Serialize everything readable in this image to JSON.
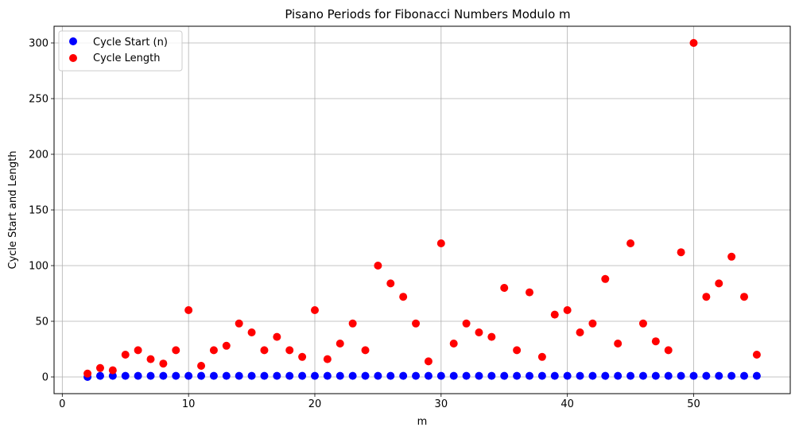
{
  "chart_data": {
    "type": "scatter",
    "title": "Pisano Periods for Fibonacci Numbers Modulo m",
    "xlabel": "m",
    "ylabel": "Cycle Start and Length",
    "xlim": [
      -0.65,
      57.65
    ],
    "ylim": [
      -15,
      315
    ],
    "xticks": [
      0,
      10,
      20,
      30,
      40,
      50
    ],
    "yticks": [
      0,
      50,
      100,
      150,
      200,
      250,
      300
    ],
    "grid": true,
    "legend_position": "top-left",
    "x": [
      2,
      3,
      4,
      5,
      6,
      7,
      8,
      9,
      10,
      11,
      12,
      13,
      14,
      15,
      16,
      17,
      18,
      19,
      20,
      21,
      22,
      23,
      24,
      25,
      26,
      27,
      28,
      29,
      30,
      31,
      32,
      33,
      34,
      35,
      36,
      37,
      38,
      39,
      40,
      41,
      42,
      43,
      44,
      45,
      46,
      47,
      48,
      49,
      50,
      51,
      52,
      53,
      54,
      55
    ],
    "series": [
      {
        "name": "Cycle Start (n)",
        "color": "#0000ff",
        "values": [
          0,
          1,
          1,
          1,
          1,
          1,
          1,
          1,
          1,
          1,
          1,
          1,
          1,
          1,
          1,
          1,
          1,
          1,
          1,
          1,
          1,
          1,
          1,
          1,
          1,
          1,
          1,
          1,
          1,
          1,
          1,
          1,
          1,
          1,
          1,
          1,
          1,
          1,
          1,
          1,
          1,
          1,
          1,
          1,
          1,
          1,
          1,
          1,
          1,
          1,
          1,
          1,
          1,
          1
        ]
      },
      {
        "name": "Cycle Length",
        "color": "#ff0000",
        "values": [
          3,
          8,
          6,
          20,
          24,
          16,
          12,
          24,
          60,
          10,
          24,
          28,
          48,
          40,
          24,
          36,
          24,
          18,
          60,
          16,
          30,
          48,
          24,
          100,
          84,
          72,
          48,
          14,
          120,
          30,
          48,
          40,
          36,
          80,
          24,
          76,
          18,
          56,
          60,
          40,
          48,
          88,
          30,
          120,
          48,
          32,
          24,
          112,
          300,
          72,
          84,
          108,
          72,
          20
        ]
      }
    ]
  }
}
